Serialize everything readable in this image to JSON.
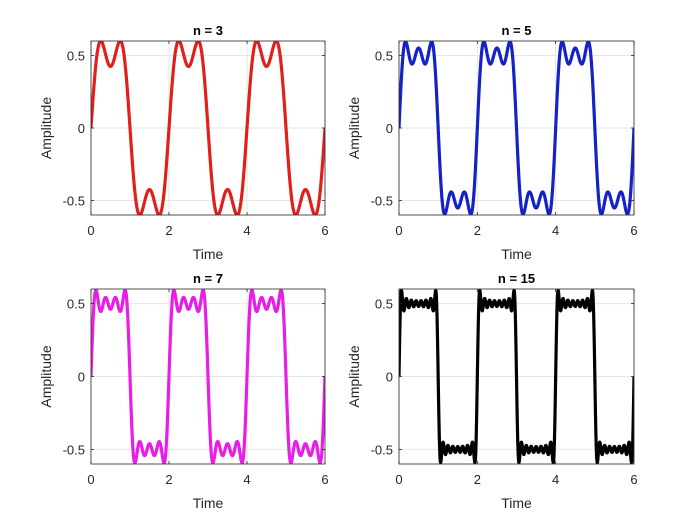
{
  "chart_data": [
    {
      "type": "line",
      "title": "n = 3",
      "xlabel": "Time",
      "ylabel": "Amplitude",
      "xlim": [
        0,
        6
      ],
      "ylim": [
        -0.6,
        0.6
      ],
      "xticks": [
        "0",
        "2",
        "4",
        "6"
      ],
      "yticks": [
        "-0.5",
        "0",
        "0.5"
      ],
      "grid": true,
      "series": [
        {
          "color": "#e0201b",
          "harmonics": 3,
          "period": 2,
          "x_range": [
            0,
            6
          ]
        }
      ]
    },
    {
      "type": "line",
      "title": "n = 5",
      "xlabel": "Time",
      "ylabel": "Amplitude",
      "xlim": [
        0,
        6
      ],
      "ylim": [
        -0.6,
        0.6
      ],
      "xticks": [
        "0",
        "2",
        "4",
        "6"
      ],
      "yticks": [
        "-0.5",
        "0",
        "0.5"
      ],
      "grid": true,
      "series": [
        {
          "color": "#1422c8",
          "harmonics": 5,
          "period": 2,
          "x_range": [
            0,
            6
          ]
        }
      ]
    },
    {
      "type": "line",
      "title": "n = 7",
      "xlabel": "Time",
      "ylabel": "Amplitude",
      "xlim": [
        0,
        6
      ],
      "ylim": [
        -0.6,
        0.6
      ],
      "xticks": [
        "0",
        "2",
        "4",
        "6"
      ],
      "yticks": [
        "-0.5",
        "0",
        "0.5"
      ],
      "grid": true,
      "series": [
        {
          "color": "#e81ee8",
          "harmonics": 7,
          "period": 2,
          "x_range": [
            0,
            6
          ]
        }
      ]
    },
    {
      "type": "line",
      "title": "n = 15",
      "xlabel": "Time",
      "ylabel": "Amplitude",
      "xlim": [
        0,
        6
      ],
      "ylim": [
        -0.6,
        0.6
      ],
      "xticks": [
        "0",
        "2",
        "4",
        "6"
      ],
      "yticks": [
        "-0.5",
        "0",
        "0.5"
      ],
      "grid": true,
      "series": [
        {
          "color": "#000000",
          "harmonics": 15,
          "period": 2,
          "x_range": [
            0,
            6
          ]
        }
      ]
    }
  ]
}
